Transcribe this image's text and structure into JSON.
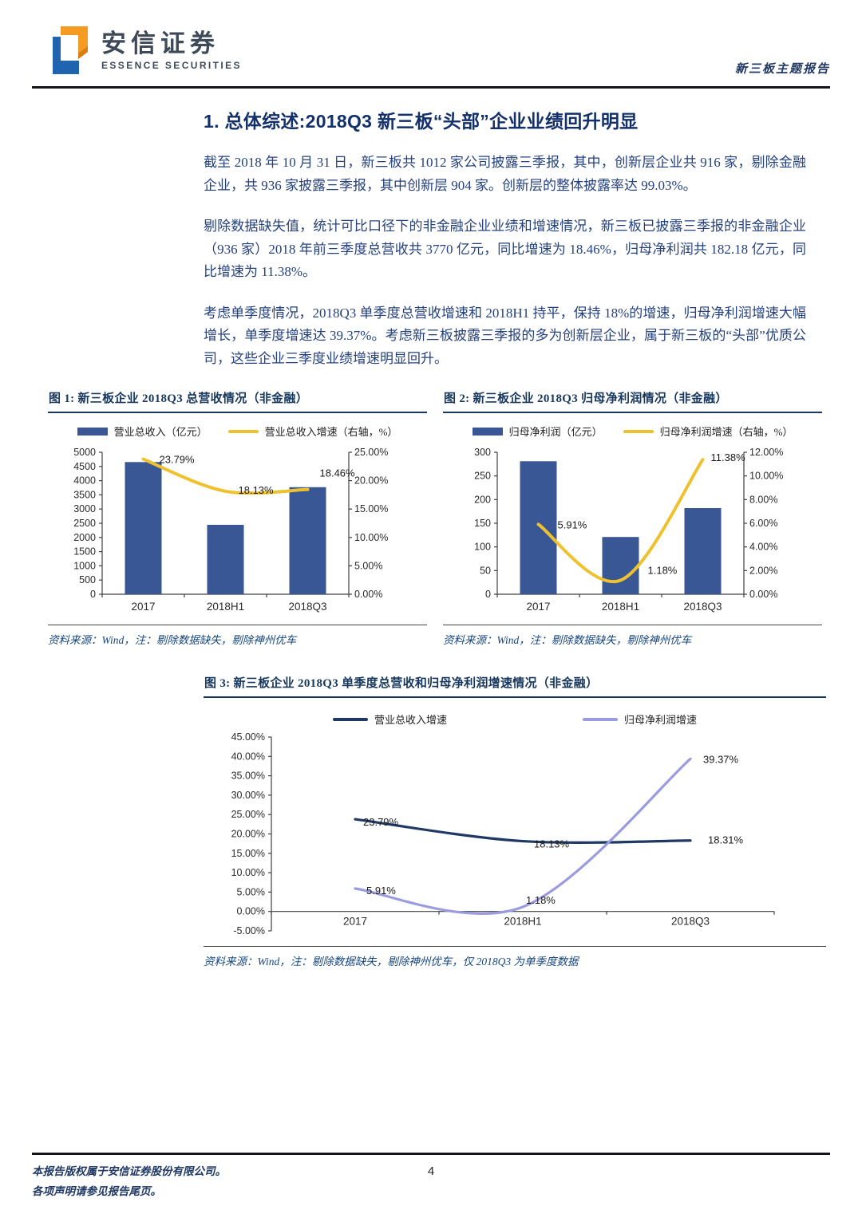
{
  "header": {
    "brand_cn": "安信证券",
    "brand_en": "ESSENCE SECURITIES",
    "report_type": "新三板主题报告"
  },
  "article": {
    "title": "1. 总体综述:2018Q3 新三板“头部”企业业绩回升明显",
    "paragraphs": [
      "截至 2018 年 10 月 31 日，新三板共 1012 家公司披露三季报，其中，创新层企业共 916 家，剔除金融企业，共 936 家披露三季报，其中创新层 904 家。创新层的整体披露率达 99.03%。",
      "剔除数据缺失值，统计可比口径下的非金融企业业绩和增速情况，新三板已披露三季报的非金融企业（936 家）2018 年前三季度总营收共 3770 亿元，同比增速为 18.46%，归母净利润共 182.18 亿元，同比增速为 11.38%。",
      "考虑单季度情况，2018Q3 单季度总营收增速和 2018H1 持平，保持 18%的增速，归母净利润增速大幅增长，单季度增速达 39.37%。考虑新三板披露三季报的多为创新层企业，属于新三板的“头部”优质公司，这些企业三季度业绩增速明显回升。"
    ]
  },
  "chart_data": [
    {
      "id": "fig1",
      "type": "combo",
      "title": "图 1: 新三板企业 2018Q3 总营收情况（非金融）",
      "categories": [
        "2017",
        "2018H1",
        "2018Q3"
      ],
      "series": [
        {
          "kind": "bar",
          "name": "营业总收入（亿元）",
          "axis": "left",
          "values": [
            4655,
            2445,
            3770
          ]
        },
        {
          "kind": "line",
          "name": "营业总收入增速（右轴，%）",
          "axis": "right",
          "values": [
            23.79,
            18.13,
            18.46
          ],
          "labels": [
            "23.79%",
            "18.13%",
            "18.46%"
          ]
        }
      ],
      "left_axis": {
        "min": 0,
        "max": 5000,
        "step": 500
      },
      "right_axis": {
        "min": 0,
        "max": 25,
        "step": 5,
        "format": "percent"
      },
      "grid": false,
      "legend_position": "top",
      "source": "资料来源：Wind，注：剔除数据缺失，剔除神州优车"
    },
    {
      "id": "fig2",
      "type": "combo",
      "title": "图 2: 新三板企业 2018Q3 归母净利润情况（非金融）",
      "categories": [
        "2017",
        "2018H1",
        "2018Q3"
      ],
      "series": [
        {
          "kind": "bar",
          "name": "归母净利润（亿元）",
          "axis": "left",
          "values": [
            281,
            121,
            182
          ]
        },
        {
          "kind": "line",
          "name": "归母净利润增速（右轴，%）",
          "axis": "right",
          "values": [
            5.91,
            1.18,
            11.38
          ],
          "labels": [
            "5.91%",
            "1.18%",
            "11.38%"
          ]
        }
      ],
      "left_axis": {
        "min": 0,
        "max": 300,
        "step": 50
      },
      "right_axis": {
        "min": 0,
        "max": 12,
        "step": 2,
        "format": "percent"
      },
      "grid": false,
      "legend_position": "top",
      "source": "资料来源：Wind，注：剔除数据缺失，剔除神州优车"
    },
    {
      "id": "fig3",
      "type": "line",
      "title": "图 3: 新三板企业 2018Q3 单季度总营收和归母净利润增速情况（非金融）",
      "categories": [
        "2017",
        "2018H1",
        "2018Q3"
      ],
      "series": [
        {
          "name": "营业总收入增速",
          "color_key": "line_navy",
          "values": [
            23.79,
            18.13,
            18.31
          ],
          "labels": [
            "23.79%",
            "18.13%",
            "18.31%"
          ]
        },
        {
          "name": "归母净利润增速",
          "color_key": "line_purple",
          "values": [
            5.91,
            1.18,
            39.37
          ],
          "labels": [
            "5.91%",
            "1.18%",
            "39.37%"
          ]
        }
      ],
      "y_axis": {
        "min": -5,
        "max": 45,
        "step": 5,
        "format": "percent"
      },
      "grid": false,
      "legend_position": "top",
      "source": "资料来源：Wind，注：剔除数据缺失，剔除神州优车，仅 2018Q3 为单季度数据"
    }
  ],
  "footer": {
    "line1": "本报告版权属于安信证券股份有限公司。",
    "line2": "各项声明请参见报告尾页。",
    "page_number": "4"
  },
  "colors": {
    "bar_blue": "#3a5795",
    "line_yellow": "#eec12f",
    "line_navy": "#1f3864",
    "line_purple": "#9b9be0",
    "accent_navy": "#17375d"
  }
}
